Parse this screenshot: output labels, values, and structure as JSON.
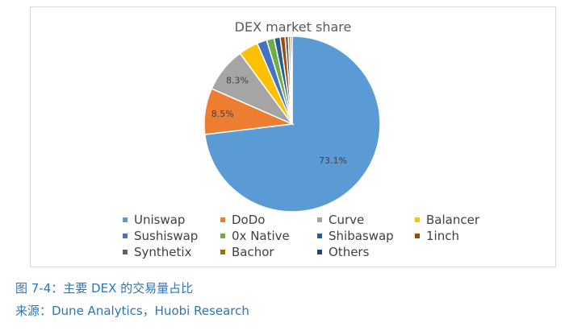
{
  "chart_data": {
    "type": "pie",
    "title": "DEX market share",
    "slices": [
      {
        "label": "Uniswap",
        "value": 73.1,
        "color": "#5b9bd5",
        "data_label": "73.1%"
      },
      {
        "label": "DoDo",
        "value": 8.5,
        "color": "#ed7d31",
        "data_label": "8.5%"
      },
      {
        "label": "Curve",
        "value": 8.3,
        "color": "#a5a5a5",
        "data_label": "8.3%"
      },
      {
        "label": "Balancer",
        "value": 3.6,
        "color": "#ffc000",
        "data_label": ""
      },
      {
        "label": "Sushiswap",
        "value": 1.8,
        "color": "#4472c4",
        "data_label": ""
      },
      {
        "label": "0x Native",
        "value": 1.4,
        "color": "#70ad47",
        "data_label": ""
      },
      {
        "label": "Shibaswap",
        "value": 1.1,
        "color": "#255e91",
        "data_label": ""
      },
      {
        "label": "1inch",
        "value": 0.9,
        "color": "#9e480e",
        "data_label": ""
      },
      {
        "label": "Synthetix",
        "value": 0.6,
        "color": "#636363",
        "data_label": ""
      },
      {
        "label": "Bachor",
        "value": 0.4,
        "color": "#997300",
        "data_label": ""
      },
      {
        "label": "Others",
        "value": 0.3,
        "color": "#264478",
        "data_label": ""
      }
    ],
    "legend_position": "bottom"
  },
  "caption": {
    "figure": "图 7-4：主要 DEX 的交易量占比",
    "source": "来源：Dune Analytics，Huobi Research"
  }
}
